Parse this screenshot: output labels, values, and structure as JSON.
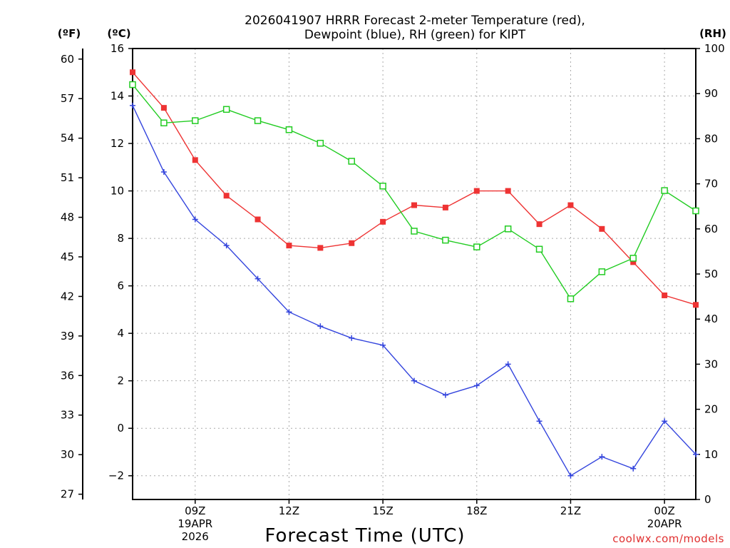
{
  "chart_data": {
    "type": "line",
    "title_line1": "2026041907 HRRR Forecast 2-meter Temperature (red),",
    "title_line2": "Dewpoint (blue), RH (green) for KIPT",
    "xlabel": "Forecast Time (UTC)",
    "credit": "coolwx.com/models",
    "units": {
      "fahrenheit": "(ºF)",
      "celsius": "(ºC)",
      "rh": "(RH)"
    },
    "x_hours": [
      7,
      8,
      9,
      10,
      11,
      12,
      13,
      14,
      15,
      16,
      17,
      18,
      19,
      20,
      21,
      22,
      23,
      24,
      25
    ],
    "xlim": [
      7,
      25
    ],
    "x_ticks": [
      {
        "hour": 9,
        "label": "09Z",
        "sub1": "19APR",
        "sub2": "2026"
      },
      {
        "hour": 12,
        "label": "12Z",
        "sub1": "",
        "sub2": ""
      },
      {
        "hour": 15,
        "label": "15Z",
        "sub1": "",
        "sub2": ""
      },
      {
        "hour": 18,
        "label": "18Z",
        "sub1": "",
        "sub2": ""
      },
      {
        "hour": 21,
        "label": "21Z",
        "sub1": "",
        "sub2": ""
      },
      {
        "hour": 24,
        "label": "00Z",
        "sub1": "20APR",
        "sub2": ""
      }
    ],
    "celsius_axis": {
      "range": [
        -3,
        16
      ],
      "ticks": [
        "-2",
        "0",
        "2",
        "4",
        "6",
        "8",
        "10",
        "12",
        "14",
        "16"
      ]
    },
    "fahrenheit_axis": {
      "ticks": [
        "27",
        "30",
        "33",
        "36",
        "39",
        "42",
        "45",
        "48",
        "51",
        "54",
        "57",
        "60"
      ]
    },
    "rh_axis": {
      "range": [
        0,
        100
      ],
      "ticks": [
        "0",
        "10",
        "20",
        "30",
        "40",
        "50",
        "60",
        "70",
        "80",
        "90",
        "100"
      ]
    },
    "series": [
      {
        "name": "2-meter Temperature",
        "axis": "celsius",
        "color": "#ee3333",
        "marker": "filled-square",
        "values": [
          15.0,
          13.5,
          11.3,
          9.8,
          8.8,
          7.7,
          7.6,
          7.8,
          8.7,
          9.4,
          9.3,
          10.0,
          10.0,
          8.6,
          9.4,
          8.4,
          7.0,
          5.6,
          5.2
        ]
      },
      {
        "name": "Dewpoint",
        "axis": "celsius",
        "color": "#3344dd",
        "marker": "plus",
        "values": [
          13.6,
          10.8,
          8.8,
          7.7,
          6.3,
          4.9,
          4.3,
          3.8,
          3.5,
          2.0,
          1.4,
          1.8,
          2.7,
          0.3,
          -2.0,
          -1.2,
          -1.7,
          0.3,
          -1.1
        ]
      },
      {
        "name": "RH",
        "axis": "rh",
        "color": "#22cc22",
        "marker": "open-square",
        "values": [
          92,
          83.5,
          84,
          86.5,
          84,
          82,
          79,
          75,
          69.5,
          59.5,
          57.5,
          56,
          60,
          55.5,
          44.5,
          50.5,
          53.5,
          68.5,
          64
        ]
      }
    ]
  }
}
